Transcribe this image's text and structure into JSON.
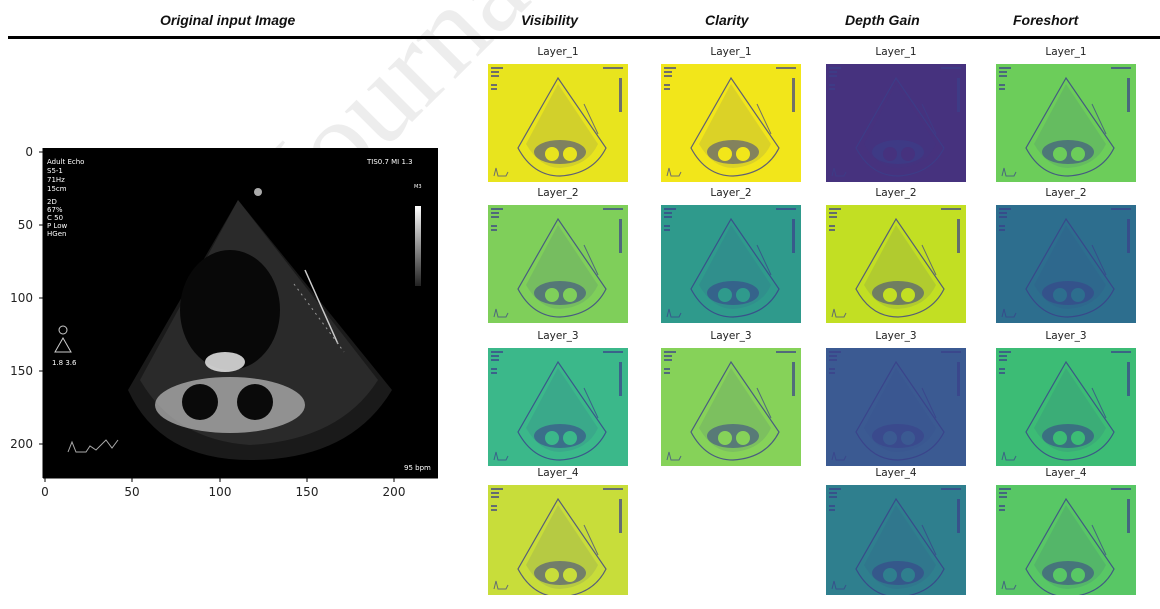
{
  "headers": {
    "original": "Original input Image",
    "visibility": "Visibility",
    "clarity": "Clarity",
    "depth_gain": "Depth Gain",
    "foreshort": "Foreshort"
  },
  "watermark": "Journal Pre-proof",
  "echo": {
    "top_left_text": [
      "Adult Echo",
      "S5-1",
      "71Hz",
      "15cm",
      "2D",
      "67%",
      "C 50",
      "P Low",
      "HGen"
    ],
    "top_right_text": "TIS0.7  MI 1.3",
    "side_label": "M3",
    "probe_text": "1.8  3.6",
    "bpm_text": "95 bpm",
    "y_ticks": [
      "0",
      "50",
      "100",
      "150",
      "200"
    ],
    "x_ticks": [
      "0",
      "50",
      "100",
      "150",
      "200"
    ]
  },
  "layer_labels": [
    "Layer_1",
    "Layer_2",
    "Layer_3",
    "Layer_4"
  ],
  "colors": {
    "visibility": [
      "#e8e41e",
      "#7fcf5a",
      "#3bb88a",
      "#c8dd3a"
    ],
    "clarity": [
      "#f2e61a",
      "#2f9a8c",
      "#86d259"
    ],
    "depth_gain": [
      "#46327e",
      "#c2df23",
      "#3b5a92",
      "#2f7f8e"
    ],
    "foreshort": [
      "#6ccd5a",
      "#2d6e8e",
      "#3cbc75",
      "#58c765"
    ],
    "tissue": "#3b3f8a"
  }
}
